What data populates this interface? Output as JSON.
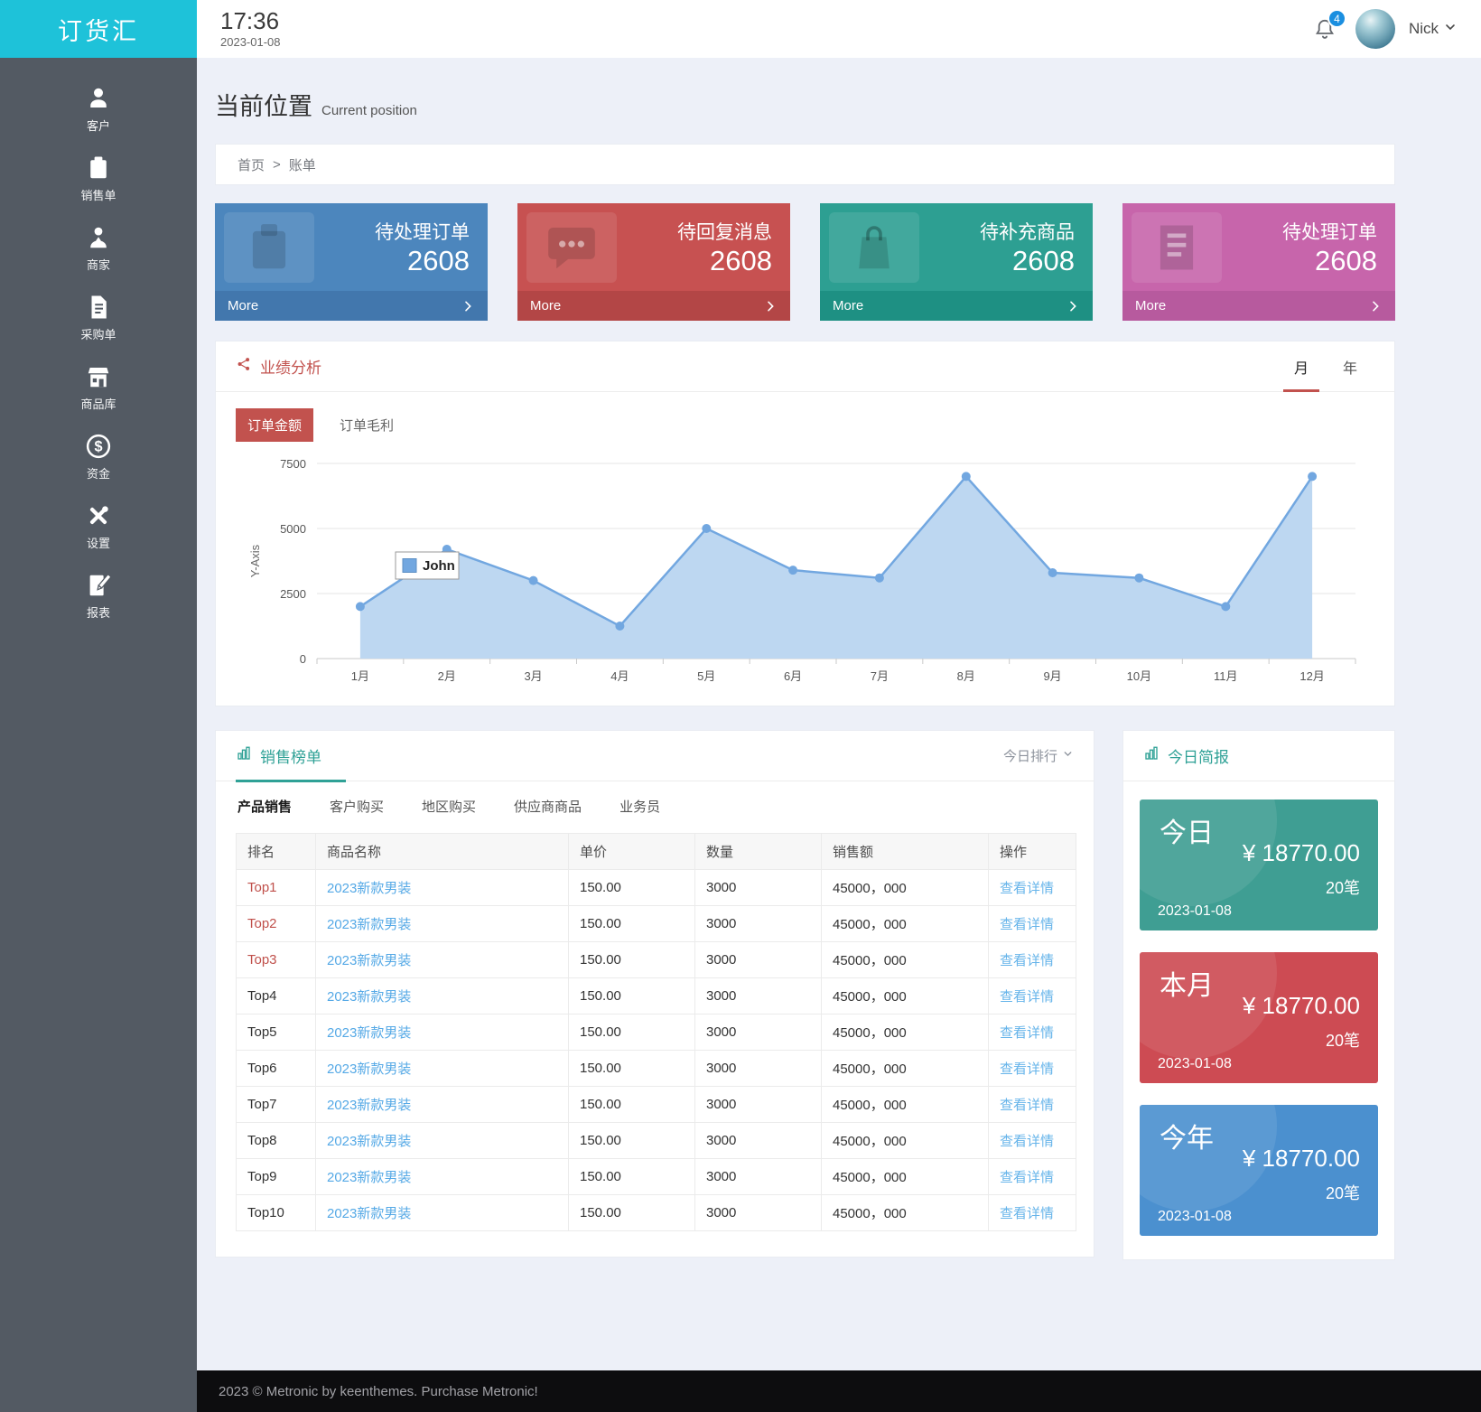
{
  "app": {
    "logo": "订货汇",
    "time": "17:36",
    "date": "2023-01-08",
    "user": "Nick",
    "notification_count": "4"
  },
  "sidebar": {
    "items": [
      {
        "label": "客户",
        "icon": "user-icon"
      },
      {
        "label": "销售单",
        "icon": "clipboard-icon"
      },
      {
        "label": "商家",
        "icon": "merchant-icon"
      },
      {
        "label": "采购单",
        "icon": "purchase-doc-icon"
      },
      {
        "label": "商品库",
        "icon": "store-icon"
      },
      {
        "label": "资金",
        "icon": "dollar-icon"
      },
      {
        "label": "设置",
        "icon": "tools-icon"
      },
      {
        "label": "报表",
        "icon": "report-icon"
      }
    ]
  },
  "page": {
    "title": "当前位置",
    "subtitle": "Current position",
    "breadcrumb": [
      "首页",
      "账单"
    ],
    "footer": "2023 © Metronic by keenthemes. Purchase Metronic!"
  },
  "stat_cards": [
    {
      "title": "待处理订单",
      "value": "2608",
      "more": "More",
      "icon": "clipboard-icon",
      "color": "#4c86bd",
      "footer_color": "#4277ad"
    },
    {
      "title": "待回复消息",
      "value": "2608",
      "more": "More",
      "icon": "chat-icon",
      "color": "#c75151",
      "footer_color": "#b34646"
    },
    {
      "title": "待补充商品",
      "value": "2608",
      "more": "More",
      "icon": "bag-icon",
      "color": "#2d9f92",
      "footer_color": "#1e9083"
    },
    {
      "title": "待处理订单",
      "value": "2608",
      "more": "More",
      "icon": "document-icon",
      "color": "#c765ab",
      "footer_color": "#b75a9e"
    }
  ],
  "performance": {
    "title": "业绩分析",
    "period_tabs": [
      "月",
      "年"
    ],
    "active_period": "月",
    "toggles": [
      "订单金额",
      "订单毛利"
    ],
    "active_toggle": "订单金额"
  },
  "chart_data": {
    "type": "area",
    "x": [
      "1月",
      "2月",
      "3月",
      "4月",
      "5月",
      "6月",
      "7月",
      "8月",
      "9月",
      "10月",
      "11月",
      "12月"
    ],
    "series": [
      {
        "name": "John",
        "values": [
          2000,
          4200,
          3000,
          1250,
          5000,
          3400,
          3100,
          7000,
          3300,
          3100,
          2000,
          7000
        ]
      }
    ],
    "title": "",
    "xlabel": "",
    "ylabel": "Y-Axis",
    "ylim": [
      0,
      7500
    ],
    "yticks": [
      0,
      2500,
      5000,
      7500
    ],
    "grid": true,
    "legend_position": "inside-left",
    "line_color": "#72a7e0",
    "fill_color": "#bdd7f1"
  },
  "sales": {
    "title": "销售榜单",
    "rank_filter": "今日排行",
    "tabs": [
      "产品销售",
      "客户购买",
      "地区购买",
      "供应商商品",
      "业务员"
    ],
    "active_tab": "产品销售",
    "columns": [
      "排名",
      "商品名称",
      "单价",
      "数量",
      "销售额",
      "操作"
    ],
    "rows": [
      {
        "rank": "Top1",
        "name": "2023新款男装",
        "price": "150.00",
        "qty": "3000",
        "amount": "45000，000",
        "action": "查看详情"
      },
      {
        "rank": "Top2",
        "name": "2023新款男装",
        "price": "150.00",
        "qty": "3000",
        "amount": "45000，000",
        "action": "查看详情"
      },
      {
        "rank": "Top3",
        "name": "2023新款男装",
        "price": "150.00",
        "qty": "3000",
        "amount": "45000，000",
        "action": "查看详情"
      },
      {
        "rank": "Top4",
        "name": "2023新款男装",
        "price": "150.00",
        "qty": "3000",
        "amount": "45000，000",
        "action": "查看详情"
      },
      {
        "rank": "Top5",
        "name": "2023新款男装",
        "price": "150.00",
        "qty": "3000",
        "amount": "45000，000",
        "action": "查看详情"
      },
      {
        "rank": "Top6",
        "name": "2023新款男装",
        "price": "150.00",
        "qty": "3000",
        "amount": "45000，000",
        "action": "查看详情"
      },
      {
        "rank": "Top7",
        "name": "2023新款男装",
        "price": "150.00",
        "qty": "3000",
        "amount": "45000，000",
        "action": "查看详情"
      },
      {
        "rank": "Top8",
        "name": "2023新款男装",
        "price": "150.00",
        "qty": "3000",
        "amount": "45000，000",
        "action": "查看详情"
      },
      {
        "rank": "Top9",
        "name": "2023新款男装",
        "price": "150.00",
        "qty": "3000",
        "amount": "45000，000",
        "action": "查看详情"
      },
      {
        "rank": "Top10",
        "name": "2023新款男装",
        "price": "150.00",
        "qty": "3000",
        "amount": "45000，000",
        "action": "查看详情"
      }
    ]
  },
  "summary": {
    "title": "今日简报",
    "cards": [
      {
        "label": "今日",
        "amount": "¥ 18770.00",
        "count": "20笔",
        "date": "2023-01-08",
        "color": "#3f9e93"
      },
      {
        "label": "本月",
        "amount": "¥ 18770.00",
        "count": "20笔",
        "date": "2023-01-08",
        "color": "#cd4b53"
      },
      {
        "label": "今年",
        "amount": "¥ 18770.00",
        "count": "20笔",
        "date": "2023-01-08",
        "color": "#4b90cf"
      }
    ]
  }
}
